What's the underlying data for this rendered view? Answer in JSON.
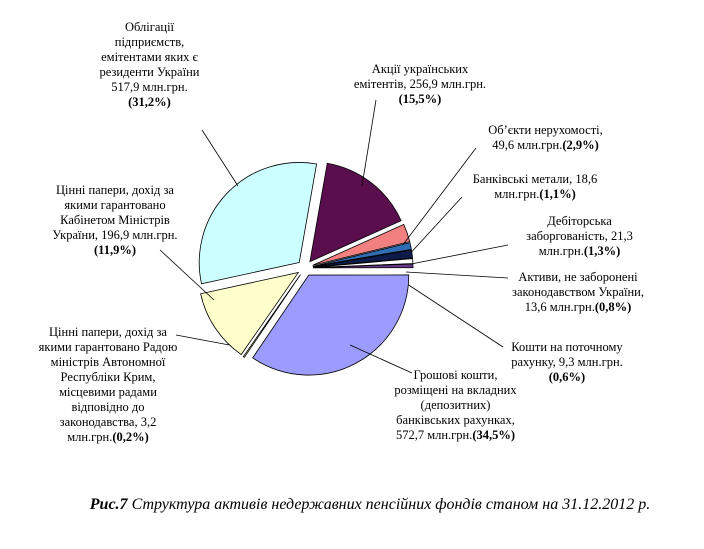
{
  "chart_data": {
    "type": "pie",
    "figure_number": "Рис.7",
    "title": "Структура активів недержавних пенсійних фондів станом на 31.12.2012 р.",
    "categories": [
      "Акції українських емітентів,",
      "Об’єкти нерухомості,",
      "Банківські метали,",
      "Дебіторська заборгованість,",
      "Активи, не заборонені законодавством України,",
      "Кошти на поточному рахунку,",
      "Грошові кошти, розміщені на вкладних (депозитних) банківських рахунках,",
      "Цінні папери, дохід за якими гарантовано Радою міністрів Автономної Республіки Крим, місцевими радами відповідно до законодавства,",
      "Цінні папери, дохід за якими гарантовано Кабінетом Міністрів України,",
      "Облігації підприємств, емітентами яких є резиденти України"
    ],
    "amounts": [
      "256,9 млн.грн.",
      "49,6 млн.грн.",
      "18,6 млн.грн.",
      "21,3 млн.грн.",
      "13,6 млн.грн.",
      "9,3 млн.грн.",
      "572,7 млн.грн.",
      "3,2 млн.грн.",
      "196,9 млн.грн.",
      "517,9 млн.грн."
    ],
    "values": [
      15.5,
      2.9,
      1.1,
      1.3,
      0.8,
      0.6,
      34.5,
      0.2,
      11.9,
      31.2
    ],
    "value_labels": [
      "(15,5%)",
      "(2,9%)",
      "(1,1%)",
      "(1,3%)",
      "(0,8%)",
      "(0,6%)",
      "(34,5%)",
      "(0,2%)",
      "(11,9%)",
      "(31,2%)"
    ],
    "colors": [
      "#5a0e4e",
      "#f28080",
      "#2f6db5",
      "#0d1a4a",
      "#ffffff",
      "#6a3a8a",
      "#9c9cff",
      "#ffffcc",
      "#ffffcc",
      "#ccffff"
    ]
  }
}
